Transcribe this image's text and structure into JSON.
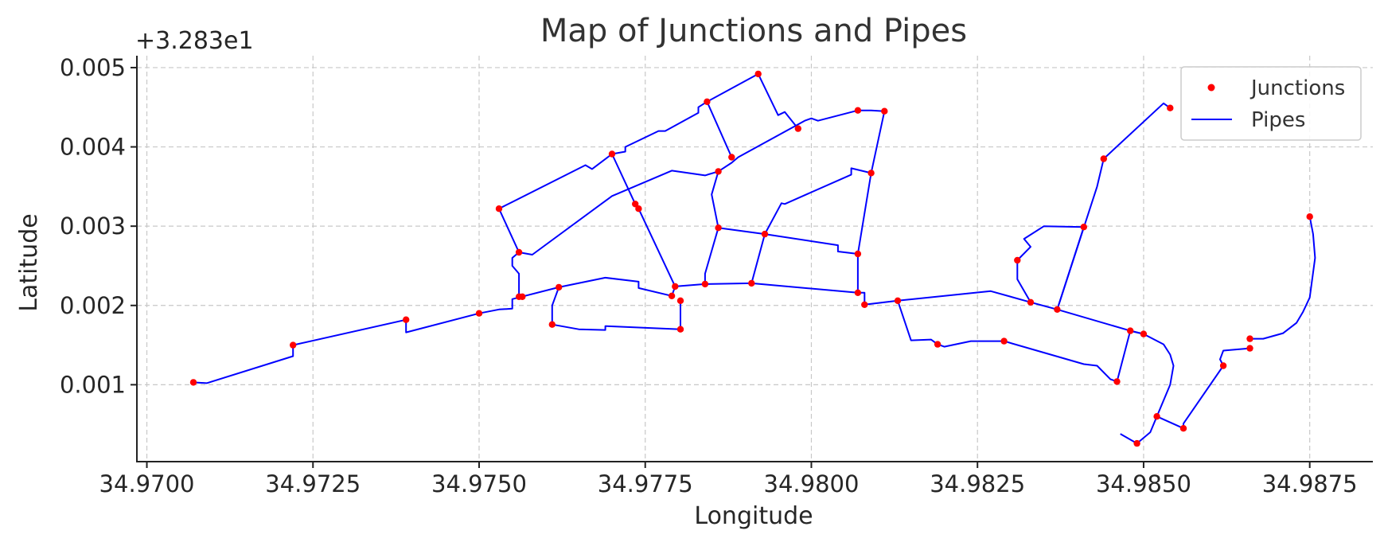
{
  "chart_data": {
    "type": "scatter",
    "title": "Map of Junctions and Pipes",
    "xlabel": "Longitude",
    "ylabel": "Latitude",
    "y_offset_text": "+3.283e1",
    "xlim": [
      34.96985,
      34.98845
    ],
    "ylim": [
      3e-05,
      0.00515
    ],
    "x_ticks": [
      34.97,
      34.9725,
      34.975,
      34.9775,
      34.98,
      34.9825,
      34.985,
      34.9875
    ],
    "x_tick_labels": [
      "34.9700",
      "34.9725",
      "34.9750",
      "34.9775",
      "34.9800",
      "34.9825",
      "34.9850",
      "34.9875"
    ],
    "y_ticks": [
      0.001,
      0.002,
      0.003,
      0.004,
      0.005
    ],
    "y_tick_labels": [
      "0.001",
      "0.002",
      "0.003",
      "0.004",
      "0.005"
    ],
    "grid": true,
    "legend_position": "top-right",
    "colors": {
      "junctions": "#ff0000",
      "pipes": "#0000ff"
    },
    "series": [
      {
        "name": "Junctions",
        "marker": "dot",
        "points": [
          [
            34.9707,
            0.00103
          ],
          [
            34.9722,
            0.0015
          ],
          [
            34.9739,
            0.00182
          ],
          [
            34.975,
            0.0019
          ],
          [
            34.9753,
            0.00322
          ],
          [
            34.9756,
            0.00267
          ],
          [
            34.9756,
            0.00211
          ],
          [
            34.97565,
            0.00211
          ],
          [
            34.9761,
            0.00176
          ],
          [
            34.9762,
            0.00223
          ],
          [
            34.977,
            0.00391
          ],
          [
            34.97735,
            0.00328
          ],
          [
            34.9774,
            0.00322
          ],
          [
            34.9779,
            0.00212
          ],
          [
            34.97795,
            0.00224
          ],
          [
            34.97803,
            0.00206
          ],
          [
            34.97803,
            0.0017
          ],
          [
            34.9784,
            0.00227
          ],
          [
            34.97843,
            0.00457
          ],
          [
            34.9786,
            0.00298
          ],
          [
            34.9786,
            0.00369
          ],
          [
            34.9788,
            0.00387
          ],
          [
            34.9791,
            0.00228
          ],
          [
            34.9792,
            0.00492
          ],
          [
            34.9793,
            0.0029
          ],
          [
            34.9798,
            0.00423
          ],
          [
            34.9807,
            0.00446
          ],
          [
            34.9807,
            0.00216
          ],
          [
            34.9807,
            0.00265
          ],
          [
            34.9808,
            0.00201
          ],
          [
            34.9809,
            0.00367
          ],
          [
            34.9811,
            0.00445
          ],
          [
            34.9813,
            0.00206
          ],
          [
            34.9819,
            0.00151
          ],
          [
            34.9829,
            0.00155
          ],
          [
            34.9831,
            0.00257
          ],
          [
            34.9833,
            0.00204
          ],
          [
            34.9837,
            0.00195
          ],
          [
            34.9841,
            0.00299
          ],
          [
            34.9844,
            0.00385
          ],
          [
            34.9846,
            0.00104
          ],
          [
            34.9848,
            0.00168
          ],
          [
            34.9849,
            0.00026
          ],
          [
            34.985,
            0.00164
          ],
          [
            34.9852,
            0.0006
          ],
          [
            34.9854,
            0.00449
          ],
          [
            34.9856,
            0.00045
          ],
          [
            34.9862,
            0.00124
          ],
          [
            34.9866,
            0.00158
          ],
          [
            34.9866,
            0.00146
          ],
          [
            34.9875,
            0.00312
          ]
        ]
      },
      {
        "name": "Pipes",
        "lines": [
          [
            [
              34.9707,
              0.00103
            ],
            [
              34.9709,
              0.00102
            ],
            [
              34.9722,
              0.00136
            ],
            [
              34.9722,
              0.0015
            ],
            [
              34.9739,
              0.00182
            ],
            [
              34.9739,
              0.00166
            ],
            [
              34.975,
              0.0019
            ],
            [
              34.9753,
              0.00195
            ],
            [
              34.9755,
              0.00196
            ],
            [
              34.9755,
              0.00208
            ],
            [
              34.9762,
              0.00223
            ],
            [
              34.9769,
              0.00235
            ],
            [
              34.9774,
              0.0023
            ],
            [
              34.9774,
              0.00222
            ],
            [
              34.9779,
              0.00212
            ],
            [
              34.97795,
              0.00224
            ]
          ],
          [
            [
              34.9753,
              0.00322
            ],
            [
              34.9756,
              0.00267
            ],
            [
              34.9758,
              0.00264
            ],
            [
              34.977,
              0.00338
            ],
            [
              34.9779,
              0.0037
            ],
            [
              34.9784,
              0.00364
            ],
            [
              34.9786,
              0.00369
            ],
            [
              34.9788,
              0.0038
            ],
            [
              34.9789,
              0.00387
            ],
            [
              34.9799,
              0.00433
            ],
            [
              34.98,
              0.00436
            ],
            [
              34.9801,
              0.00433
            ],
            [
              34.9807,
              0.00446
            ],
            [
              34.9809,
              0.00446
            ],
            [
              34.9811,
              0.00445
            ],
            [
              34.9809,
              0.00367
            ],
            [
              34.9806,
              0.00373
            ],
            [
              34.9806,
              0.00365
            ],
            [
              34.9796,
              0.00328
            ],
            [
              34.97955,
              0.00329
            ],
            [
              34.9793,
              0.0029
            ],
            [
              34.9791,
              0.00228
            ]
          ],
          [
            [
              34.9753,
              0.00322
            ],
            [
              34.9766,
              0.00377
            ],
            [
              34.9767,
              0.00372
            ],
            [
              34.977,
              0.00391
            ],
            [
              34.9772,
              0.00394
            ],
            [
              34.9772,
              0.004
            ],
            [
              34.9777,
              0.0042
            ],
            [
              34.9778,
              0.0042
            ],
            [
              34.9783,
              0.00443
            ],
            [
              34.9783,
              0.0045
            ],
            [
              34.97843,
              0.00457
            ],
            [
              34.9792,
              0.00492
            ],
            [
              34.9795,
              0.0044
            ],
            [
              34.9796,
              0.00444
            ],
            [
              34.9798,
              0.00423
            ]
          ],
          [
            [
              34.97843,
              0.00457
            ],
            [
              34.9788,
              0.00387
            ]
          ],
          [
            [
              34.977,
              0.00391
            ],
            [
              34.97735,
              0.00328
            ],
            [
              34.9774,
              0.00322
            ],
            [
              34.97795,
              0.00224
            ],
            [
              34.9784,
              0.00227
            ],
            [
              34.9791,
              0.00228
            ],
            [
              34.9807,
              0.00216
            ],
            [
              34.9808,
              0.00216
            ],
            [
              34.9808,
              0.00201
            ],
            [
              34.9813,
              0.00206
            ],
            [
              34.9815,
              0.00156
            ],
            [
              34.9818,
              0.00157
            ],
            [
              34.9819,
              0.00151
            ],
            [
              34.982,
              0.00148
            ],
            [
              34.9824,
              0.00155
            ],
            [
              34.9829,
              0.00155
            ],
            [
              34.9841,
              0.00126
            ],
            [
              34.9843,
              0.00124
            ],
            [
              34.9845,
              0.00107
            ],
            [
              34.9846,
              0.00104
            ],
            [
              34.9848,
              0.00168
            ],
            [
              34.985,
              0.00164
            ]
          ],
          [
            [
              34.9756,
              0.00267
            ],
            [
              34.9755,
              0.0026
            ],
            [
              34.9755,
              0.0025
            ],
            [
              34.9756,
              0.0024
            ],
            [
              34.9756,
              0.00211
            ]
          ],
          [
            [
              34.9786,
              0.00369
            ],
            [
              34.9785,
              0.0034
            ],
            [
              34.9786,
              0.00298
            ],
            [
              34.9793,
              0.0029
            ],
            [
              34.9804,
              0.00276
            ],
            [
              34.9804,
              0.00268
            ],
            [
              34.9807,
              0.00265
            ],
            [
              34.9809,
              0.00367
            ]
          ],
          [
            [
              34.9786,
              0.00298
            ],
            [
              34.9784,
              0.0024
            ],
            [
              34.9784,
              0.00227
            ]
          ],
          [
            [
              34.9807,
              0.00265
            ],
            [
              34.9807,
              0.00216
            ]
          ],
          [
            [
              34.9762,
              0.00223
            ],
            [
              34.9761,
              0.002
            ],
            [
              34.9761,
              0.00176
            ],
            [
              34.9765,
              0.0017
            ],
            [
              34.9769,
              0.00169
            ],
            [
              34.9769,
              0.00174
            ],
            [
              34.97803,
              0.0017
            ],
            [
              34.97803,
              0.00206
            ]
          ],
          [
            [
              34.9813,
              0.00206
            ],
            [
              34.9827,
              0.00218
            ],
            [
              34.9833,
              0.00204
            ],
            [
              34.9837,
              0.00195
            ],
            [
              34.9848,
              0.00168
            ],
            [
              34.985,
              0.00164
            ],
            [
              34.9853,
              0.00151
            ],
            [
              34.9854,
              0.00138
            ],
            [
              34.98545,
              0.00124
            ],
            [
              34.9854,
              0.001
            ],
            [
              34.9852,
              0.0006
            ],
            [
              34.9856,
              0.00045
            ],
            [
              34.9856,
              0.00051
            ],
            [
              34.9862,
              0.00124
            ],
            [
              34.98615,
              0.00132
            ],
            [
              34.9862,
              0.00143
            ],
            [
              34.9866,
              0.00146
            ]
          ],
          [
            [
              34.9833,
              0.00204
            ],
            [
              34.9831,
              0.00233
            ],
            [
              34.9831,
              0.00257
            ],
            [
              34.9833,
              0.00274
            ],
            [
              34.9832,
              0.00284
            ],
            [
              34.9835,
              0.003
            ],
            [
              34.9841,
              0.00299
            ],
            [
              34.9837,
              0.00195
            ]
          ],
          [
            [
              34.9837,
              0.00195
            ],
            [
              34.9843,
              0.0035
            ],
            [
              34.9844,
              0.00385
            ],
            [
              34.9853,
              0.00455
            ],
            [
              34.9854,
              0.00449
            ]
          ],
          [
            [
              34.9852,
              0.0006
            ],
            [
              34.9851,
              0.0004
            ],
            [
              34.9849,
              0.00026
            ],
            [
              34.98465,
              0.00038
            ]
          ],
          [
            [
              34.9866,
              0.00158
            ],
            [
              34.9868,
              0.00158
            ],
            [
              34.9871,
              0.00165
            ],
            [
              34.9873,
              0.00178
            ],
            [
              34.9874,
              0.00192
            ],
            [
              34.9875,
              0.0021
            ],
            [
              34.98758,
              0.0026
            ],
            [
              34.98755,
              0.0029
            ],
            [
              34.9875,
              0.00312
            ]
          ]
        ]
      }
    ]
  }
}
